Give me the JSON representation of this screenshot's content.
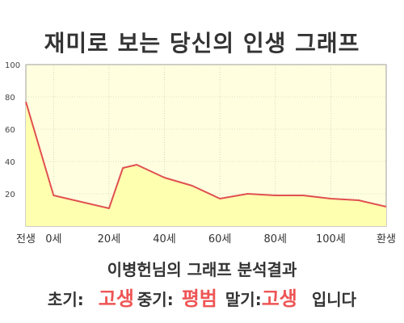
{
  "title": "재미로 보는 당신의 인생 그래프",
  "subtitle": "이병헌님의 그래프 분석결과",
  "summary": {
    "early_label": "초기:",
    "early_value": "고생",
    "mid_label": "중기:",
    "mid_value": "평범",
    "late_label": "말기:",
    "late_value": "고생",
    "ending": "입니다"
  },
  "colors": {
    "plot_background": "#ffffe0",
    "area_fill": "#ffffb0",
    "line": "#e05050",
    "highlight_text": "#ee5555"
  },
  "chart_data": {
    "type": "area",
    "ylim": [
      0,
      100
    ],
    "yticks": [
      20,
      40,
      60,
      80,
      100
    ],
    "xlim": [
      -10,
      120
    ],
    "xticks": [
      {
        "x": -10,
        "label": "전생"
      },
      {
        "x": 0,
        "label": "0세"
      },
      {
        "x": 20,
        "label": "20세"
      },
      {
        "x": 40,
        "label": "40세"
      },
      {
        "x": 60,
        "label": "60세"
      },
      {
        "x": 80,
        "label": "80세"
      },
      {
        "x": 100,
        "label": "100세"
      },
      {
        "x": 120,
        "label": "환생"
      }
    ],
    "grid": true,
    "series": [
      {
        "x": [
          -10,
          0,
          20,
          25,
          30,
          40,
          50,
          60,
          70,
          80,
          90,
          100,
          110,
          120
        ],
        "y": [
          77,
          19,
          11,
          36,
          38,
          30,
          25,
          17,
          20,
          19,
          19,
          17,
          16,
          12
        ]
      }
    ]
  }
}
